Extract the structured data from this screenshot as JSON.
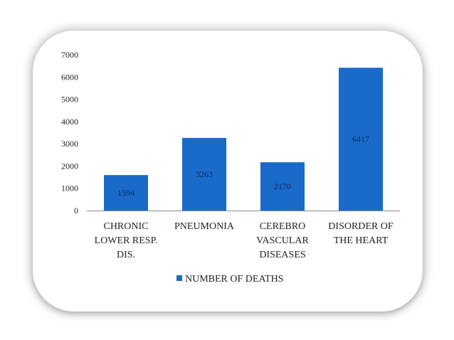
{
  "chart_data": {
    "type": "bar",
    "categories": [
      [
        "CHRONIC",
        "LOWER RESP.",
        "DIS."
      ],
      [
        "PNEUMONIA"
      ],
      [
        "CEREBRO",
        "VASCULAR",
        "DISEASES"
      ],
      [
        "DISORDER OF",
        "THE HEART"
      ]
    ],
    "series": [
      {
        "name": "NUMBER OF DEATHS",
        "values": [
          1594,
          3263,
          2170,
          6417
        ],
        "color": "#1a6ac9"
      }
    ],
    "y_ticks": [
      "0",
      "1000",
      "2000",
      "3000",
      "4000",
      "5000",
      "6000",
      "7000"
    ],
    "ylim": [
      0,
      7000
    ],
    "title": "",
    "xlabel": "",
    "ylabel": "",
    "grid": false,
    "legend": "bottom-center"
  }
}
